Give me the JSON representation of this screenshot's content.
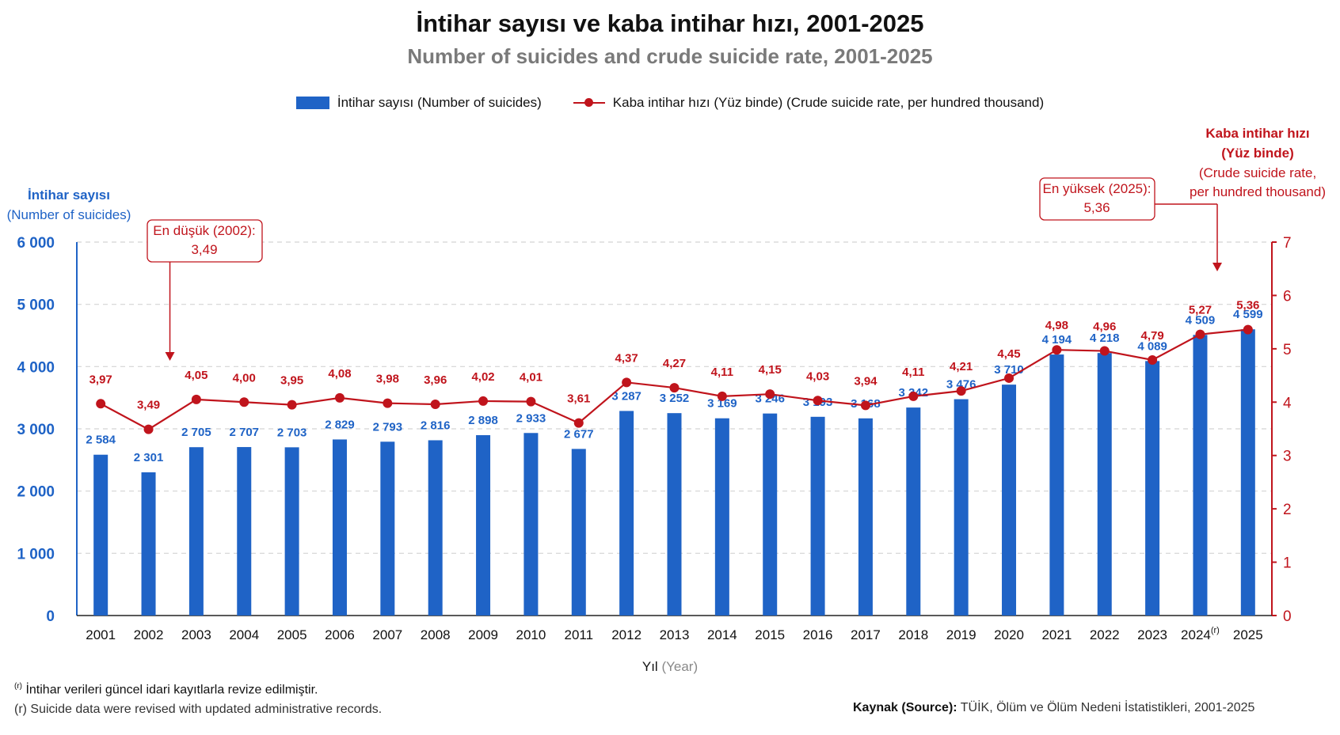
{
  "header": {
    "title": "İntihar sayısı ve kaba intihar hızı, 2001-2025",
    "subtitle": "Number of suicides and crude suicide rate, 2001-2025"
  },
  "legend": {
    "bars_tr": "İntihar sayısı",
    "bars_en": "(Number of suicides)",
    "line_tr": "Kaba intihar hızı (Yüz binde)",
    "line_en": "(Crude suicide rate, per hundred thousand)"
  },
  "axes": {
    "left_title_1": "İntihar sayısı",
    "left_title_2": "(Number of suicides)",
    "right_title_1": "Kaba intihar hızı",
    "right_title_2": "(Yüz binde)",
    "right_title_3": "(Crude suicide rate,",
    "right_title_4": "per hundred thousand)",
    "x_title_tr": "Yıl",
    "x_title_en": "(Year)"
  },
  "annotations": {
    "min_label": "En düşük (2002):",
    "min_value": "3,49",
    "max_label": "En yüksek (2025):",
    "max_value": "5,36"
  },
  "footnotes": {
    "note_marker": "(r)",
    "note_tr": "İntihar verileri güncel idari kayıtlarla revize edilmiştir.",
    "note_en": "(r) Suicide data were revised with updated administrative records.",
    "source_label": "Kaynak (Source):",
    "source_text": "TÜİK, Ölüm ve Ölüm Nedeni İstatistikleri, 2001-2025"
  },
  "colors": {
    "bar": "#1f63c6",
    "bar_label": "#1f63c6",
    "line": "#c0141c",
    "left_axis": "#1f63c6",
    "right_axis": "#c0141c",
    "grid": "#d4d4d4"
  },
  "chart_data": {
    "type": "bar",
    "categories": [
      "2001",
      "2002",
      "2003",
      "2004",
      "2005",
      "2006",
      "2007",
      "2008",
      "2009",
      "2010",
      "2011",
      "2012",
      "2013",
      "2014",
      "2015",
      "2016",
      "2017",
      "2018",
      "2019",
      "2020",
      "2021",
      "2022",
      "2023",
      "2024",
      "2025"
    ],
    "category_superscripts": {
      "2024": "(r)"
    },
    "series": [
      {
        "name": "İntihar sayısı (Number of suicides)",
        "type": "bar",
        "axis": "left",
        "values": [
          2584,
          2301,
          2705,
          2707,
          2703,
          2829,
          2793,
          2816,
          2898,
          2933,
          2677,
          3287,
          3252,
          3169,
          3246,
          3193,
          3168,
          3342,
          3476,
          3710,
          4194,
          4218,
          4089,
          4509,
          4599
        ],
        "labels": [
          "2 584",
          "2 301",
          "2 705",
          "2 707",
          "2 703",
          "2 829",
          "2 793",
          "2 816",
          "2 898",
          "2 933",
          "2 677",
          "3 287",
          "3 252",
          "3 169",
          "3 246",
          "3 193",
          "3 168",
          "3 342",
          "3 476",
          "3 710",
          "4 194",
          "4 218",
          "4 089",
          "4 509",
          "4 599"
        ]
      },
      {
        "name": "Kaba intihar hızı (Yüz binde) (Crude suicide rate, per hundred thousand)",
        "type": "line",
        "axis": "right",
        "values": [
          3.97,
          3.49,
          4.05,
          4.0,
          3.95,
          4.08,
          3.98,
          3.96,
          4.02,
          4.01,
          3.61,
          4.37,
          4.27,
          4.11,
          4.15,
          4.03,
          3.94,
          4.11,
          4.21,
          4.45,
          4.98,
          4.96,
          4.79,
          5.27,
          5.36
        ],
        "labels": [
          "3,97",
          "3,49",
          "4,05",
          "4,00",
          "3,95",
          "4,08",
          "3,98",
          "3,96",
          "4,02",
          "4,01",
          "3,61",
          "4,37",
          "4,27",
          "4,11",
          "4,15",
          "4,03",
          "3,94",
          "4,11",
          "4,21",
          "4,45",
          "4,98",
          "4,96",
          "4,79",
          "5,27",
          "5,36"
        ]
      }
    ],
    "left_axis": {
      "min": 0,
      "max": 6000,
      "ticks": [
        0,
        1000,
        2000,
        3000,
        4000,
        5000,
        6000
      ],
      "tick_labels": [
        "0",
        "1 000",
        "2 000",
        "3 000",
        "4 000",
        "5 000",
        "6 000"
      ]
    },
    "right_axis": {
      "min": 0,
      "max": 7,
      "ticks": [
        0,
        1,
        2,
        3,
        4,
        5,
        6,
        7
      ],
      "tick_labels": [
        "0",
        "1",
        "2",
        "3",
        "4",
        "5",
        "6",
        "7"
      ]
    },
    "grid": true,
    "legend_position": "top"
  }
}
